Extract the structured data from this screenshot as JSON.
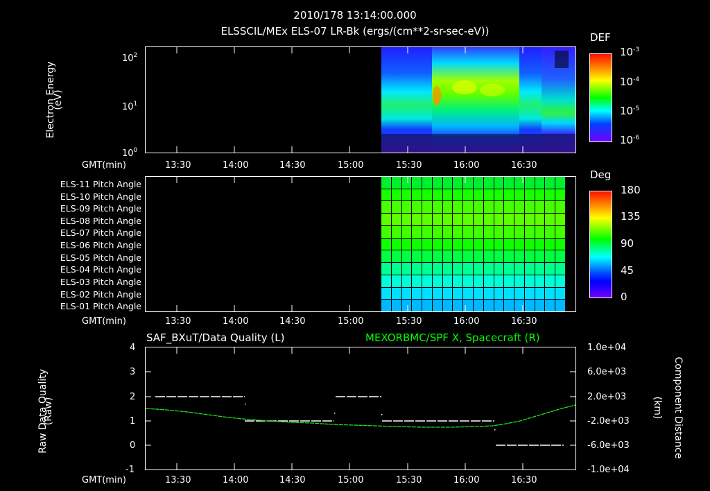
{
  "header": {
    "timestamp": "2010/178 13:14:00.000",
    "title": "ELSSCIL/MEx ELS-07 LR-Bk  (ergs/(cm**2-sr-sec-eV))"
  },
  "time_axis": {
    "label": "GMT(min)",
    "ticks": [
      "13:30",
      "14:00",
      "14:30",
      "15:00",
      "15:30",
      "16:00",
      "16:30"
    ]
  },
  "panel1": {
    "ylabel_line1": "Electron Energy",
    "ylabel_line2": "(eV)",
    "yticks": [
      {
        "base": "10",
        "exp": "2"
      },
      {
        "base": "10",
        "exp": "1"
      },
      {
        "base": "10",
        "exp": "0"
      }
    ],
    "colorbar": {
      "title": "DEF",
      "ticks": [
        {
          "base": "10",
          "exp": "-3"
        },
        {
          "base": "10",
          "exp": "-4"
        },
        {
          "base": "10",
          "exp": "-5"
        },
        {
          "base": "10",
          "exp": "-6"
        }
      ]
    }
  },
  "panel2": {
    "row_labels": [
      "ELS-11 Pitch Angle",
      "ELS-10 Pitch Angle",
      "ELS-09 Pitch Angle",
      "ELS-08 Pitch Angle",
      "ELS-07 Pitch Angle",
      "ELS-06 Pitch Angle",
      "ELS-05 Pitch Angle",
      "ELS-04 Pitch Angle",
      "ELS-03 Pitch Angle",
      "ELS-02 Pitch Angle",
      "ELS-01 Pitch Angle"
    ],
    "row_colors": [
      "#00f030",
      "#18ff00",
      "#48ff00",
      "#5cff00",
      "#40ff00",
      "#10ff00",
      "#00ff40",
      "#00ff90",
      "#00ffd8",
      "#00e0ff",
      "#00b8ff"
    ],
    "colorbar": {
      "title": "Deg",
      "ticks": [
        "180",
        "135",
        "90",
        "45",
        "0"
      ]
    }
  },
  "panel3": {
    "left_title": "SAF_BXuT/Data Quality (L)",
    "right_title": "MEXORBMC/SPF X, Spacecraft (R)",
    "right_title_color": "#00ff00",
    "ylabel_line1": "Raw Data Quality",
    "ylabel_line2": "(Raw)",
    "yticks_left": [
      "4",
      "3",
      "2",
      "1",
      "0",
      "-1"
    ],
    "yticks_right": [
      "1.0e+04",
      "6.0e+03",
      "2.0e+03",
      "-2.0e+03",
      "-6.0e+03",
      "-1.0e+04"
    ],
    "rlabel_line1": "Component Distance",
    "rlabel_line2": "(km)"
  },
  "chart_data": [
    {
      "type": "heatmap",
      "title": "ELSSCIL/MEx ELS-07 LR-Bk (ergs/(cm**2-sr-sec-eV))",
      "subtitle": "2010/178 13:14:00.000",
      "xlabel": "GMT(min)",
      "ylabel": "Electron Energy (eV)",
      "x_range": [
        "13:14",
        "16:58"
      ],
      "x_ticks": [
        "13:30",
        "14:00",
        "14:30",
        "15:00",
        "15:30",
        "16:00",
        "16:30"
      ],
      "y_scale": "log",
      "y_range": [
        1,
        200
      ],
      "colorbar": {
        "label": "DEF",
        "scale": "log",
        "range": [
          1e-06,
          0.001
        ]
      },
      "data_start": "15:19",
      "features": [
        {
          "time": "15:19-15:41",
          "band_eV": [
            5,
            15
          ],
          "level": "~1e-5"
        },
        {
          "time": "15:41-16:21",
          "band_eV": [
            10,
            60
          ],
          "level": "~1e-4 to 3e-4"
        },
        {
          "time": "16:21-16:38",
          "band_eV": [
            5,
            20
          ],
          "level": "~1e-5"
        },
        {
          "time": "16:38-16:57",
          "band_eV": [
            3,
            8
          ],
          "level": "~5e-5"
        }
      ]
    },
    {
      "type": "heatmap",
      "title": "ELS Pitch Angles",
      "xlabel": "GMT(min)",
      "categories": [
        "ELS-11",
        "ELS-10",
        "ELS-09",
        "ELS-08",
        "ELS-07",
        "ELS-06",
        "ELS-05",
        "ELS-04",
        "ELS-03",
        "ELS-02",
        "ELS-01"
      ],
      "colorbar": {
        "label": "Deg",
        "range": [
          0,
          180
        ]
      },
      "data_start": "15:19",
      "data_end": "16:53",
      "approx_values_deg": [
        95,
        105,
        115,
        120,
        112,
        100,
        88,
        75,
        62,
        52,
        40
      ]
    },
    {
      "type": "line",
      "title_left": "SAF_BXuT/Data Quality (L)",
      "title_right": "MEXORBMC/SPF X, Spacecraft (R)",
      "xlabel": "GMT(min)",
      "ylabel": "Raw Data Quality (Raw)",
      "ylabel_right": "Component Distance (km)",
      "ylim": [
        -1,
        4
      ],
      "ylim_right": [
        -10000,
        10000
      ],
      "series": [
        {
          "name": "Data Quality (L)",
          "color": "#ffffff",
          "style": "dashed",
          "segments": [
            {
              "x": [
                "13:20",
                "14:05"
              ],
              "y": 2
            },
            {
              "x": [
                "14:05",
                "14:59"
              ],
              "y": 1
            },
            {
              "x": [
                "14:59",
                "15:18"
              ],
              "y": 2
            },
            {
              "x": [
                "15:18",
                "16:17"
              ],
              "y": 1
            },
            {
              "x": [
                "16:17",
                "16:52"
              ],
              "y": 0
            }
          ]
        },
        {
          "name": "SPF X Spacecraft (R)",
          "color": "#00ff00",
          "x": [
            "13:14",
            "13:30",
            "14:00",
            "14:30",
            "15:00",
            "15:30",
            "16:00",
            "16:15",
            "16:30",
            "16:45",
            "16:57"
          ],
          "y": [
            1600,
            1100,
            -1000,
            -2000,
            -2700,
            -3000,
            -3000,
            -2300,
            0,
            3000,
            5000
          ]
        }
      ]
    }
  ]
}
